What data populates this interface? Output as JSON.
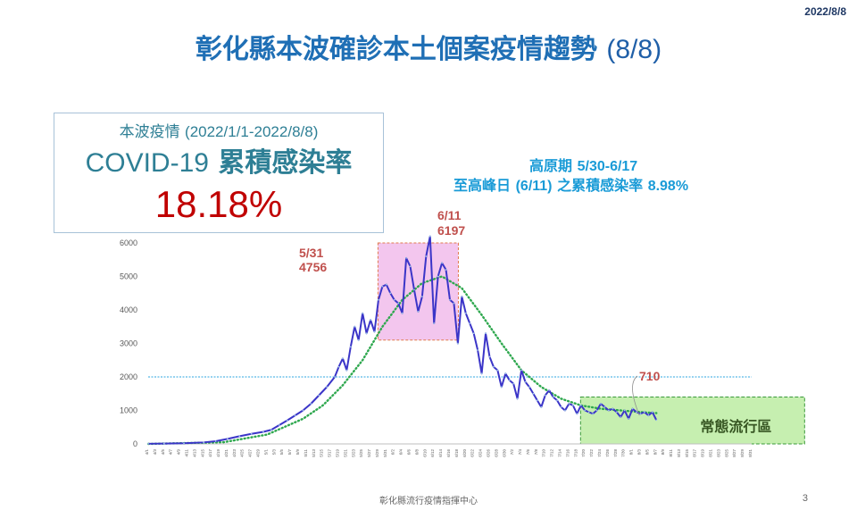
{
  "header": {
    "date": "2022/8/8",
    "title": "彰化縣本波確診本土個案疫情趨勢",
    "title_date": "(8/8)"
  },
  "cumulative": {
    "line1_label": "本波疫情",
    "line1_period": "(2022/1/1-2022/8/8)",
    "line2_prefix": "COVID-19",
    "line2_label": "累積感染率",
    "value": "18.18%"
  },
  "plateau": {
    "label": "高原期",
    "range": "5/30-6/17",
    "label2": "至高峰日",
    "peak": "(6/11)",
    "label3": "之累積感染率",
    "rate": "8.98%"
  },
  "footer": {
    "org": "彰化縣流行疫情指揮中心",
    "page": "3"
  },
  "colors": {
    "title": "#1f6fb5",
    "line": "#3b35c8",
    "trend": "#2fa84f",
    "plateau_fill": "#f3c6ee",
    "endemic_fill": "#c6efb0",
    "reference": "#2ea6e0",
    "annotation": "#c0504d",
    "rate": "#c00000"
  },
  "chart_data": {
    "type": "line",
    "title": "",
    "xlabel": "",
    "ylabel": "",
    "ylim": [
      0,
      6000
    ],
    "yticks": [
      0,
      1000,
      2000,
      3000,
      4000,
      5000,
      6000
    ],
    "reference_line": 2000,
    "grid": false,
    "x_range": [
      "4/1",
      "8/31"
    ],
    "xticks": [
      "4/1",
      "4/3",
      "4/5",
      "4/7",
      "4/9",
      "4/11",
      "4/13",
      "4/15",
      "4/17",
      "4/19",
      "4/21",
      "4/23",
      "4/25",
      "4/27",
      "4/29",
      "5/1",
      "5/3",
      "5/5",
      "5/7",
      "5/9",
      "5/11",
      "5/13",
      "5/15",
      "5/17",
      "5/19",
      "5/21",
      "5/23",
      "5/25",
      "5/27",
      "5/29",
      "5/31",
      "6/2",
      "6/4",
      "6/6",
      "6/8",
      "6/10",
      "6/12",
      "6/14",
      "6/16",
      "6/18",
      "6/20",
      "6/22",
      "6/24",
      "6/26",
      "6/28",
      "6/30",
      "7/2",
      "7/4",
      "7/6",
      "7/8",
      "7/10",
      "7/12",
      "7/14",
      "7/16",
      "7/18",
      "7/20",
      "7/22",
      "7/24",
      "7/26",
      "7/28",
      "7/30",
      "8/1",
      "8/3",
      "8/5",
      "8/7",
      "8/9",
      "8/11",
      "8/13",
      "8/15",
      "8/17",
      "8/19",
      "8/21",
      "8/23",
      "8/25",
      "8/27",
      "8/29",
      "8/31"
    ],
    "series": [
      {
        "type": "line",
        "x": [
          "4/1",
          "4/5",
          "4/10",
          "4/15",
          "4/18",
          "4/21",
          "4/24",
          "4/27",
          "4/30",
          "5/2",
          "5/4",
          "5/6",
          "5/8",
          "5/10",
          "5/12",
          "5/14",
          "5/16",
          "5/18",
          "5/19",
          "5/20",
          "5/21",
          "5/22",
          "5/23",
          "5/24",
          "5/25",
          "5/26",
          "5/27",
          "5/28",
          "5/29",
          "5/30",
          "5/31",
          "6/1",
          "6/2",
          "6/3",
          "6/4",
          "6/5",
          "6/6",
          "6/7",
          "6/8",
          "6/9",
          "6/10",
          "6/11",
          "6/12",
          "6/13",
          "6/14",
          "6/15",
          "6/16",
          "6/17",
          "6/18",
          "6/19",
          "6/20",
          "6/21",
          "6/22",
          "6/23",
          "6/24",
          "6/25",
          "6/26",
          "6/27",
          "6/28",
          "6/29",
          "6/30",
          "7/1",
          "7/2",
          "7/3",
          "7/4",
          "7/5",
          "7/6",
          "7/7",
          "7/8",
          "7/9",
          "7/10",
          "7/11",
          "7/12",
          "7/13",
          "7/14",
          "7/15",
          "7/16",
          "7/17",
          "7/18",
          "7/19",
          "7/20",
          "7/21",
          "7/22",
          "7/23",
          "7/24",
          "7/25",
          "7/26",
          "7/27",
          "7/28",
          "7/29",
          "7/30",
          "7/31",
          "8/1",
          "8/2",
          "8/3",
          "8/4",
          "8/5",
          "8/6",
          "8/7"
        ],
        "values": [
          5,
          10,
          20,
          45,
          80,
          150,
          230,
          300,
          360,
          420,
          560,
          700,
          850,
          1000,
          1200,
          1450,
          1700,
          2000,
          2300,
          2550,
          2200,
          2900,
          3500,
          3100,
          3900,
          3300,
          3700,
          3350,
          4300,
          4700,
          4756,
          4500,
          4300,
          4200,
          3900,
          5550,
          5300,
          4600,
          3950,
          4400,
          5600,
          6197,
          3600,
          5000,
          5400,
          5200,
          4300,
          4200,
          3000,
          4400,
          3900,
          3600,
          3300,
          2800,
          2100,
          3300,
          2600,
          2300,
          2200,
          1700,
          2100,
          1900,
          1800,
          1350,
          2200,
          1850,
          1700,
          1500,
          1300,
          1100,
          1450,
          1600,
          1400,
          1300,
          1100,
          1000,
          1200,
          1150,
          900,
          1150,
          1000,
          950,
          900,
          1000,
          1200,
          1100,
          1000,
          1050,
          950,
          800,
          1000,
          750,
          1050,
          950,
          900,
          950,
          850,
          950,
          710
        ]
      },
      {
        "type": "trend",
        "x": [
          "4/1",
          "4/20",
          "5/1",
          "5/10",
          "5/15",
          "5/20",
          "5/25",
          "5/30",
          "6/4",
          "6/9",
          "6/14",
          "6/19",
          "6/24",
          "6/29",
          "7/4",
          "7/9",
          "7/14",
          "7/19",
          "7/24",
          "7/29",
          "8/3",
          "8/7"
        ],
        "values": [
          0,
          50,
          280,
          750,
          1150,
          1750,
          2500,
          3500,
          4300,
          4800,
          5000,
          4650,
          3850,
          3000,
          2200,
          1700,
          1350,
          1150,
          1050,
          1000,
          950,
          920
        ]
      }
    ],
    "annotations": [
      {
        "date": "5/31",
        "value": "4756"
      },
      {
        "date": "6/11",
        "value": "6197"
      },
      {
        "date": "",
        "value": "710"
      }
    ],
    "regions": [
      {
        "name": "plateau",
        "from": "5/30",
        "to": "6/17"
      },
      {
        "name": "常態流行區",
        "from": "7/18",
        "to": "8/31"
      }
    ]
  }
}
